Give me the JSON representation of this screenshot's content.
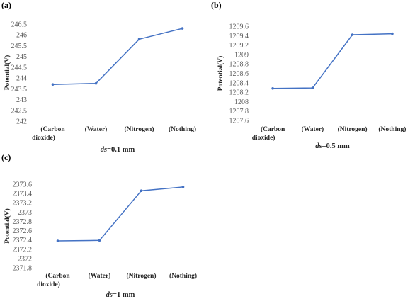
{
  "chart_data": [
    {
      "type": "line",
      "panel_label": "(a)",
      "caption_var": "ds",
      "caption_value": "=0.1 mm",
      "ylabel": "Potential(V)",
      "categories": [
        [
          "(Carbon",
          "dioxide)"
        ],
        [
          "(Water)"
        ],
        [
          "(Nitrogen)"
        ],
        [
          "(Nothing)"
        ]
      ],
      "values": [
        243.7,
        243.75,
        245.8,
        246.3
      ],
      "ylim": [
        242,
        246.5
      ],
      "yticks": [
        "242",
        "242.5",
        "243",
        "243.5",
        "244",
        "244.5",
        "245",
        "245.5",
        "246",
        "246.5"
      ],
      "color": "#4472C4",
      "grid": false
    },
    {
      "type": "line",
      "panel_label": "(b)",
      "caption_var": "ds",
      "caption_value": "=0.5 mm",
      "ylabel": "Potential(V)",
      "categories": [
        [
          "(Carbon",
          "dioxide)"
        ],
        [
          "(Water)"
        ],
        [
          "(Nitrogen)"
        ],
        [
          "(Nothing)"
        ]
      ],
      "values": [
        1208.28,
        1208.29,
        1209.42,
        1209.44
      ],
      "ylim": [
        1207.6,
        1209.6
      ],
      "yticks": [
        "1207.6",
        "1207.8",
        "1208",
        "1208.2",
        "1208.4",
        "1208.6",
        "1208.8",
        "1209",
        "1209.2",
        "1209.4",
        "1209.6"
      ],
      "color": "#4472C4",
      "grid": false
    },
    {
      "type": "line",
      "panel_label": "(c)",
      "caption_var": "ds",
      "caption_value": "=1 mm",
      "ylabel": "Potential(V)",
      "categories": [
        [
          "(Carbon",
          "dioxide)"
        ],
        [
          "(Water)"
        ],
        [
          "(Nitrogen)"
        ],
        [
          "(Nothing)"
        ]
      ],
      "values": [
        2372.38,
        2372.39,
        2373.46,
        2373.54
      ],
      "ylim": [
        2371.8,
        2373.6
      ],
      "yticks": [
        "2371.8",
        "2372",
        "2372.2",
        "2372.4",
        "2372.6",
        "2372.8",
        "2373",
        "2373.2",
        "2373.4",
        "2373.6"
      ],
      "color": "#4472C4",
      "grid": false
    }
  ]
}
